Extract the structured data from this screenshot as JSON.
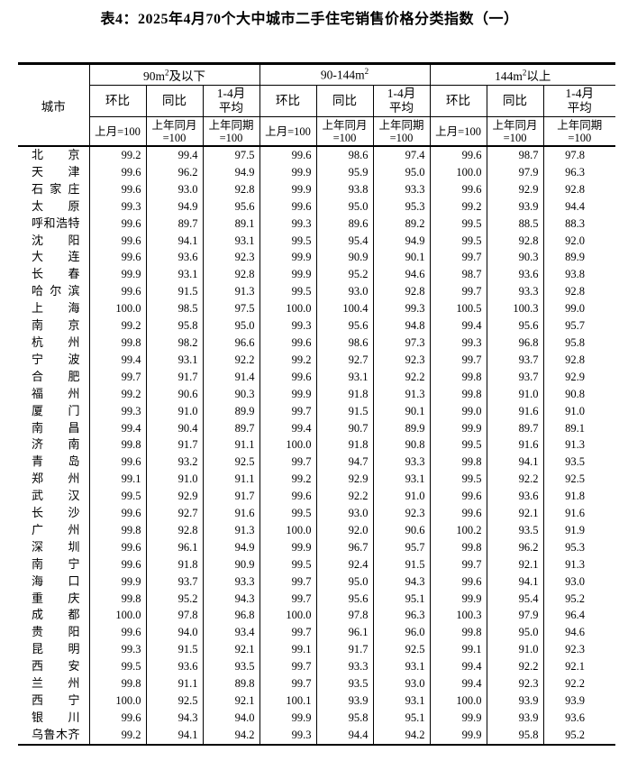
{
  "title": "表4：2025年4月70个大中城市二手住宅销售价格分类指数（一）",
  "table": {
    "city_header": "城市",
    "groups": [
      {
        "prefix": "90m",
        "sup": "2",
        "suffix": "及以下"
      },
      {
        "prefix": "90-144m",
        "sup": "2",
        "suffix": ""
      },
      {
        "prefix": "144m",
        "sup": "2",
        "suffix": "以上"
      }
    ],
    "sub_headers": [
      "环比",
      "同比",
      "1-4月\n平均"
    ],
    "base_headers": [
      "上月=100",
      "上年同月\n=100",
      "上年同期\n=100"
    ],
    "rows": [
      {
        "city": "北京",
        "values": [
          "99.2",
          "99.4",
          "97.5",
          "99.6",
          "98.6",
          "97.4",
          "99.6",
          "98.7",
          "97.8"
        ]
      },
      {
        "city": "天津",
        "values": [
          "99.6",
          "96.2",
          "94.9",
          "99.9",
          "95.9",
          "95.0",
          "100.0",
          "97.9",
          "96.3"
        ]
      },
      {
        "city": "石家庄",
        "values": [
          "99.6",
          "93.0",
          "92.8",
          "99.9",
          "93.8",
          "93.3",
          "99.6",
          "92.9",
          "92.8"
        ]
      },
      {
        "city": "太原",
        "values": [
          "99.3",
          "94.9",
          "95.6",
          "99.6",
          "95.0",
          "95.3",
          "99.2",
          "93.9",
          "94.4"
        ]
      },
      {
        "city": "呼和浩特",
        "values": [
          "99.6",
          "89.7",
          "89.1",
          "99.3",
          "89.6",
          "89.2",
          "99.5",
          "88.5",
          "88.3"
        ]
      },
      {
        "city": "沈阳",
        "values": [
          "99.6",
          "94.1",
          "93.1",
          "99.5",
          "95.4",
          "94.9",
          "99.5",
          "92.8",
          "92.0"
        ]
      },
      {
        "city": "大连",
        "values": [
          "99.6",
          "93.6",
          "92.3",
          "99.9",
          "90.9",
          "90.1",
          "99.7",
          "90.3",
          "89.9"
        ]
      },
      {
        "city": "长春",
        "values": [
          "99.9",
          "93.1",
          "92.8",
          "99.9",
          "95.2",
          "94.6",
          "98.7",
          "93.6",
          "93.8"
        ]
      },
      {
        "city": "哈尔滨",
        "values": [
          "99.6",
          "91.5",
          "91.3",
          "99.5",
          "93.0",
          "92.8",
          "99.7",
          "93.3",
          "92.8"
        ]
      },
      {
        "city": "上海",
        "values": [
          "100.0",
          "98.5",
          "97.5",
          "100.0",
          "100.4",
          "99.3",
          "100.5",
          "100.3",
          "99.0"
        ]
      },
      {
        "city": "南京",
        "values": [
          "99.2",
          "95.8",
          "95.0",
          "99.3",
          "95.6",
          "94.8",
          "99.4",
          "95.6",
          "95.7"
        ]
      },
      {
        "city": "杭州",
        "values": [
          "99.8",
          "98.2",
          "96.6",
          "99.6",
          "98.6",
          "97.3",
          "99.3",
          "96.8",
          "95.8"
        ]
      },
      {
        "city": "宁波",
        "values": [
          "99.4",
          "93.1",
          "92.2",
          "99.2",
          "92.7",
          "92.3",
          "99.7",
          "93.7",
          "92.8"
        ]
      },
      {
        "city": "合肥",
        "values": [
          "99.7",
          "91.7",
          "91.4",
          "99.6",
          "93.1",
          "92.2",
          "99.8",
          "93.7",
          "92.9"
        ]
      },
      {
        "city": "福州",
        "values": [
          "99.2",
          "90.6",
          "90.3",
          "99.9",
          "91.8",
          "91.3",
          "99.8",
          "91.0",
          "90.8"
        ]
      },
      {
        "city": "厦门",
        "values": [
          "99.3",
          "91.0",
          "89.9",
          "99.7",
          "91.5",
          "90.1",
          "99.0",
          "91.6",
          "91.0"
        ]
      },
      {
        "city": "南昌",
        "values": [
          "99.4",
          "90.4",
          "89.7",
          "99.4",
          "90.7",
          "89.9",
          "99.9",
          "89.7",
          "89.1"
        ]
      },
      {
        "city": "济南",
        "values": [
          "99.8",
          "91.7",
          "91.1",
          "100.0",
          "91.8",
          "90.8",
          "99.5",
          "91.6",
          "91.3"
        ]
      },
      {
        "city": "青岛",
        "values": [
          "99.6",
          "93.2",
          "92.5",
          "99.7",
          "94.7",
          "93.3",
          "99.8",
          "94.1",
          "93.5"
        ]
      },
      {
        "city": "郑州",
        "values": [
          "99.1",
          "91.0",
          "91.1",
          "99.2",
          "92.9",
          "93.1",
          "99.5",
          "92.2",
          "92.5"
        ]
      },
      {
        "city": "武汉",
        "values": [
          "99.5",
          "92.9",
          "91.7",
          "99.6",
          "92.2",
          "91.0",
          "99.6",
          "93.6",
          "91.8"
        ]
      },
      {
        "city": "长沙",
        "values": [
          "99.6",
          "92.7",
          "91.6",
          "99.5",
          "93.0",
          "92.3",
          "99.6",
          "92.1",
          "91.6"
        ]
      },
      {
        "city": "广州",
        "values": [
          "99.8",
          "92.8",
          "91.3",
          "100.0",
          "92.0",
          "90.6",
          "100.2",
          "93.5",
          "91.9"
        ]
      },
      {
        "city": "深圳",
        "values": [
          "99.6",
          "96.1",
          "94.9",
          "99.9",
          "96.7",
          "95.7",
          "99.8",
          "96.2",
          "95.3"
        ]
      },
      {
        "city": "南宁",
        "values": [
          "99.6",
          "91.8",
          "90.9",
          "99.5",
          "92.4",
          "91.5",
          "99.7",
          "92.1",
          "91.3"
        ]
      },
      {
        "city": "海口",
        "values": [
          "99.9",
          "93.7",
          "93.3",
          "99.7",
          "95.0",
          "94.3",
          "99.6",
          "94.1",
          "93.0"
        ]
      },
      {
        "city": "重庆",
        "values": [
          "99.8",
          "95.2",
          "94.3",
          "99.7",
          "95.6",
          "95.1",
          "99.9",
          "95.4",
          "95.2"
        ]
      },
      {
        "city": "成都",
        "values": [
          "100.0",
          "97.8",
          "96.8",
          "100.0",
          "97.8",
          "96.3",
          "100.3",
          "97.9",
          "96.4"
        ]
      },
      {
        "city": "贵阳",
        "values": [
          "99.6",
          "94.0",
          "93.4",
          "99.7",
          "96.1",
          "96.0",
          "99.8",
          "95.0",
          "94.6"
        ]
      },
      {
        "city": "昆明",
        "values": [
          "99.3",
          "91.5",
          "92.1",
          "99.1",
          "91.7",
          "92.5",
          "99.1",
          "91.0",
          "92.3"
        ]
      },
      {
        "city": "西安",
        "values": [
          "99.5",
          "93.6",
          "93.5",
          "99.7",
          "93.3",
          "93.1",
          "99.4",
          "92.2",
          "92.1"
        ]
      },
      {
        "city": "兰州",
        "values": [
          "99.8",
          "91.1",
          "89.8",
          "99.7",
          "93.5",
          "93.0",
          "99.4",
          "92.3",
          "92.2"
        ]
      },
      {
        "city": "西宁",
        "values": [
          "100.0",
          "92.5",
          "92.1",
          "100.1",
          "93.9",
          "93.1",
          "100.0",
          "93.9",
          "93.9"
        ]
      },
      {
        "city": "银川",
        "values": [
          "99.6",
          "94.3",
          "94.0",
          "99.9",
          "95.8",
          "95.1",
          "99.9",
          "93.9",
          "93.6"
        ]
      },
      {
        "city": "乌鲁木齐",
        "values": [
          "99.2",
          "94.1",
          "94.2",
          "99.3",
          "94.4",
          "94.2",
          "99.9",
          "95.8",
          "95.2"
        ]
      }
    ]
  }
}
